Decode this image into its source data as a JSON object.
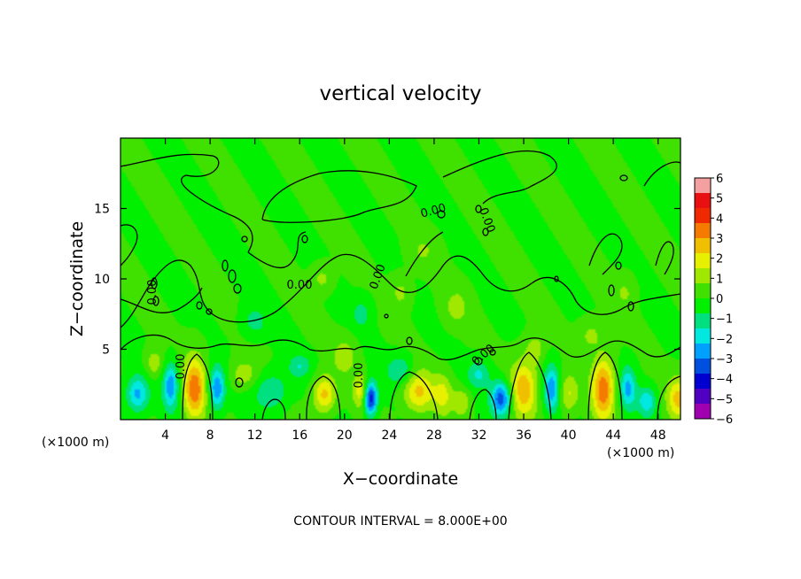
{
  "chart_data": {
    "type": "heatmap",
    "title": "vertical velocity",
    "xlabel": "X−coordinate",
    "ylabel": "Z−coordinate",
    "x_unit_left": "(×1000 m)",
    "x_unit_right": "(×1000 m)",
    "xlim": [
      0,
      50
    ],
    "ylim": [
      0,
      20
    ],
    "x_ticks": [
      4,
      8,
      12,
      16,
      20,
      24,
      28,
      32,
      36,
      40,
      44,
      48
    ],
    "y_ticks": [
      5,
      10,
      15
    ],
    "colorbar": {
      "ticks": [
        "6",
        "5",
        "4",
        "3",
        "2",
        "1",
        "0",
        "−1",
        "−2",
        "−3",
        "−4",
        "−5",
        "−6"
      ],
      "range": [
        -6,
        6
      ],
      "colors": [
        "#f5a0a0",
        "#e81010",
        "#f02a00",
        "#f57a00",
        "#f0c000",
        "#e6f000",
        "#a0e800",
        "#40e000",
        "#00f000",
        "#00e080",
        "#00e8e0",
        "#00a0ff",
        "#0050e0",
        "#0000d0",
        "#5000c0",
        "#a000b0"
      ]
    },
    "contour_labels": [
      "0.00",
      "0.00",
      "0.00",
      "0.00",
      "0.00",
      "0.00",
      "0.00",
      "0.00"
    ],
    "cells": [
      {
        "x": 6.6,
        "z": 2.2,
        "w": 3.5,
        "sx": 1.0,
        "sz": 2.2
      },
      {
        "x": 43.1,
        "z": 2.2,
        "w": 3.5,
        "sx": 1.0,
        "sz": 2.2
      },
      {
        "x": 36.0,
        "z": 2.2,
        "w": 2.8,
        "sx": 1.2,
        "sz": 2.0
      },
      {
        "x": 26.6,
        "z": 2.0,
        "w": 2.4,
        "sx": 1.4,
        "sz": 1.5
      },
      {
        "x": 18.2,
        "z": 1.8,
        "w": 2.6,
        "sx": 1.0,
        "sz": 1.3
      },
      {
        "x": 49.8,
        "z": 1.5,
        "w": 2.4,
        "sx": 1.0,
        "sz": 1.5
      },
      {
        "x": 21.5,
        "z": 2.0,
        "w": 2.0,
        "sx": 0.7,
        "sz": 1.2
      },
      {
        "x": 28.8,
        "z": 1.8,
        "w": 1.6,
        "sx": 0.8,
        "sz": 1.4
      },
      {
        "x": 30.5,
        "z": 1.3,
        "w": 1.4,
        "sx": 0.8,
        "sz": 1.0
      },
      {
        "x": 40.0,
        "z": 1.8,
        "w": 1.6,
        "sx": 0.9,
        "sz": 1.4
      },
      {
        "x": 22.3,
        "z": 1.5,
        "w": -4.5,
        "sx": 0.6,
        "sz": 1.2
      },
      {
        "x": 34.0,
        "z": 1.5,
        "w": -3.6,
        "sx": 0.9,
        "sz": 1.2
      },
      {
        "x": 8.6,
        "z": 2.2,
        "w": -3.0,
        "sx": 0.7,
        "sz": 1.5
      },
      {
        "x": 4.5,
        "z": 2.4,
        "w": -2.8,
        "sx": 0.7,
        "sz": 1.6
      },
      {
        "x": 38.5,
        "z": 2.2,
        "w": -2.8,
        "sx": 0.7,
        "sz": 1.6
      },
      {
        "x": 1.5,
        "z": 1.8,
        "w": -2.5,
        "sx": 1.0,
        "sz": 1.3
      },
      {
        "x": 45.3,
        "z": 2.2,
        "w": -2.4,
        "sx": 0.7,
        "sz": 1.5
      },
      {
        "x": 47.0,
        "z": 1.3,
        "w": -2.0,
        "sx": 0.8,
        "sz": 1.0
      },
      {
        "x": 13.5,
        "z": 2.0,
        "w": -1.6,
        "sx": 1.5,
        "sz": 1.3
      },
      {
        "x": 25.0,
        "z": 3.5,
        "w": -1.6,
        "sx": 1.2,
        "sz": 1.0
      },
      {
        "x": 32.0,
        "z": 3.2,
        "w": -1.6,
        "sx": 1.0,
        "sz": 1.0
      },
      {
        "x": 16.0,
        "z": 3.8,
        "w": -1.4,
        "sx": 1.0,
        "sz": 0.8
      },
      {
        "x": 11.0,
        "z": 3.2,
        "w": 1.3,
        "sx": 1.2,
        "sz": 1.0
      },
      {
        "x": 20.0,
        "z": 4.5,
        "w": 1.3,
        "sx": 1.0,
        "sz": 1.2
      },
      {
        "x": 3.0,
        "z": 4.0,
        "w": 1.3,
        "sx": 0.8,
        "sz": 1.0
      },
      {
        "x": 37.0,
        "z": 5.0,
        "w": 1.2,
        "sx": 0.8,
        "sz": 1.0
      },
      {
        "x": 42.0,
        "z": 6.0,
        "w": 1.0,
        "sx": 1.0,
        "sz": 1.0
      },
      {
        "x": 30.0,
        "z": 8.0,
        "w": 1.2,
        "sx": 1.0,
        "sz": 1.2
      },
      {
        "x": 25.0,
        "z": 9.0,
        "w": 1.0,
        "sx": 0.8,
        "sz": 1.0
      },
      {
        "x": 18.0,
        "z": 10.0,
        "w": 1.0,
        "sx": 0.8,
        "sz": 0.8
      },
      {
        "x": 45.0,
        "z": 9.0,
        "w": 0.9,
        "sx": 0.8,
        "sz": 1.0
      },
      {
        "x": 12.0,
        "z": 7.0,
        "w": -1.2,
        "sx": 1.0,
        "sz": 1.0
      },
      {
        "x": 21.5,
        "z": 7.5,
        "w": -1.2,
        "sx": 0.8,
        "sz": 1.0
      },
      {
        "x": 27.0,
        "z": 12.0,
        "w": 0.9,
        "sx": 1.0,
        "sz": 1.0
      }
    ],
    "footer": "CONTOUR INTERVAL = 8.000E+00"
  }
}
